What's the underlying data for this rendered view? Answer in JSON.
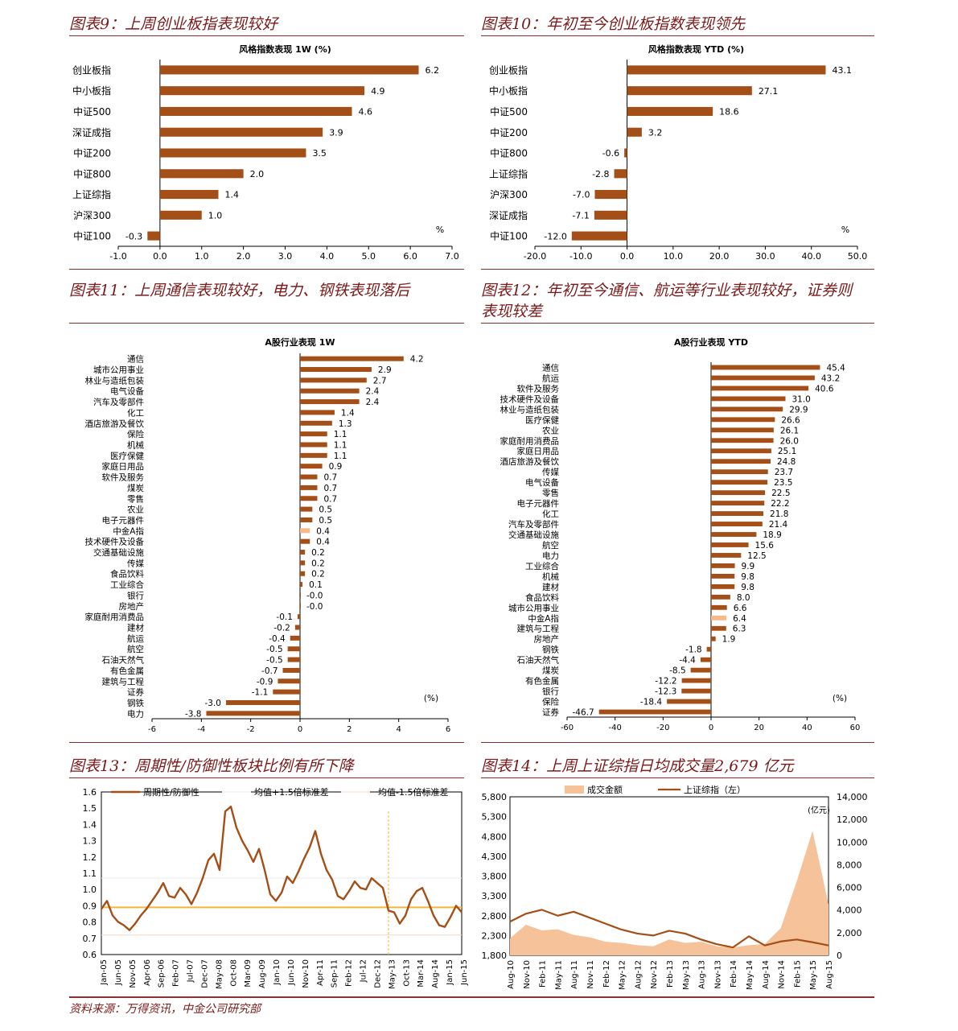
{
  "colors": {
    "bar": "#a34f17",
    "highlight": "#f5b98a",
    "title": "#7a1a1a",
    "line": "#a34f17",
    "band": "#f2b63b",
    "volume": "#f5c29a"
  },
  "panels": [
    {
      "title": "图表9：上周创业板指表现较好"
    },
    {
      "title": "图表10：年初至今创业板指数表现领先"
    },
    {
      "title": "图表11：上周通信表现较好，电力、钢铁表现落后"
    },
    {
      "title": "图表12：年初至今通信、航运等行业表现较好，证券则",
      "title2": "表现较差"
    },
    {
      "title": "图表13：周期性/防御性板块比例有所下降"
    },
    {
      "title": "图表14：上周上证综指日均成交量2,679 亿元"
    }
  ],
  "footer": "资料来源：万得资讯，中金公司研究部",
  "chart_data": [
    {
      "type": "bar",
      "title": "风格指数表现 1W (%)",
      "unit": "%",
      "categories": [
        "创业板指",
        "中小板指",
        "中证500",
        "深证成指",
        "中证200",
        "中证800",
        "上证综指",
        "沪深300",
        "中证100"
      ],
      "values": [
        6.2,
        4.9,
        4.6,
        3.9,
        3.5,
        2.0,
        1.4,
        1.0,
        -0.3
      ],
      "value_labels": [
        "6.2",
        "4.9",
        "4.6",
        "3.9",
        "3.5",
        "2.0",
        "1.4",
        "1.0",
        "-0.3"
      ],
      "xlim": [
        -1,
        7
      ],
      "xticks": [
        "-1.0",
        "0.0",
        "1.0",
        "2.0",
        "3.0",
        "4.0",
        "5.0",
        "6.0",
        "7.0"
      ]
    },
    {
      "type": "bar",
      "title": "风格指数表现 YTD (%)",
      "unit": "%",
      "categories": [
        "创业板指",
        "中小板指",
        "中证500",
        "中证200",
        "中证800",
        "上证综指",
        "沪深300",
        "深证成指",
        "中证100"
      ],
      "values": [
        43.1,
        27.1,
        18.6,
        3.2,
        -0.6,
        -2.8,
        -7.0,
        -7.1,
        -12.0
      ],
      "value_labels": [
        "43.1",
        "27.1",
        "18.6",
        "3.2",
        "-0.6",
        "-2.8",
        "-7.0",
        "-7.1",
        "-12.0"
      ],
      "xlim": [
        -20,
        50
      ],
      "xticks": [
        "-20.0",
        "-10.0",
        "0.0",
        "10.0",
        "20.0",
        "30.0",
        "40.0",
        "50.0"
      ]
    },
    {
      "type": "bar",
      "title": "A股行业表现 1W",
      "unit": "(%)",
      "highlight": "中金A指",
      "categories": [
        "通信",
        "城市公用事业",
        "林业与造纸包装",
        "电气设备",
        "汽车及零部件",
        "化工",
        "酒店旅游及餐饮",
        "保险",
        "机械",
        "医疗保健",
        "家庭日用品",
        "软件及服务",
        "煤炭",
        "零售",
        "农业",
        "电子元器件",
        "中金A指",
        "技术硬件及设备",
        "交通基础设施",
        "传媒",
        "食品饮料",
        "工业综合",
        "银行",
        "房地产",
        "家庭耐用消费品",
        "建材",
        "航运",
        "航空",
        "石油天然气",
        "有色金属",
        "建筑与工程",
        "证券",
        "钢铁",
        "电力"
      ],
      "values": [
        4.2,
        2.9,
        2.7,
        2.4,
        2.4,
        1.4,
        1.3,
        1.1,
        1.1,
        1.1,
        0.9,
        0.7,
        0.7,
        0.7,
        0.5,
        0.5,
        0.4,
        0.4,
        0.2,
        0.2,
        0.2,
        0.1,
        -0.0,
        -0.0,
        -0.1,
        -0.2,
        -0.4,
        -0.5,
        -0.5,
        -0.7,
        -0.9,
        -1.1,
        -3.0,
        -3.8
      ],
      "value_labels": [
        "4.2",
        "2.9",
        "2.7",
        "2.4",
        "2.4",
        "1.4",
        "1.3",
        "1.1",
        "1.1",
        "1.1",
        "0.9",
        "0.7",
        "0.7",
        "0.7",
        "0.5",
        "0.5",
        "0.4",
        "0.4",
        "0.2",
        "0.2",
        "0.2",
        "0.1",
        "-0.0",
        "-0.0",
        "-0.1",
        "-0.2",
        "-0.4",
        "-0.5",
        "-0.5",
        "-0.7",
        "-0.9",
        "-1.1",
        "-3.0",
        "-3.8"
      ],
      "xlim": [
        -6,
        6
      ],
      "xticks": [
        "-6",
        "-4",
        "-2",
        "0",
        "2",
        "4",
        "6"
      ]
    },
    {
      "type": "bar",
      "title": "A股行业表现 YTD",
      "unit": "(%)",
      "highlight": "中金A指",
      "categories": [
        "通信",
        "航运",
        "软件及服务",
        "技术硬件及设备",
        "林业与造纸包装",
        "医疗保健",
        "农业",
        "家庭耐用消费品",
        "家庭日用品",
        "酒店旅游及餐饮",
        "传媒",
        "电气设备",
        "零售",
        "电子元器件",
        "化工",
        "汽车及零部件",
        "交通基础设施",
        "航空",
        "电力",
        "工业综合",
        "机械",
        "建材",
        "食品饮料",
        "城市公用事业",
        "中金A指",
        "建筑与工程",
        "房地产",
        "钢铁",
        "石油天然气",
        "煤炭",
        "有色金属",
        "银行",
        "保险",
        "证券"
      ],
      "values": [
        45.4,
        43.2,
        40.6,
        31.0,
        29.9,
        26.6,
        26.1,
        26.0,
        25.1,
        24.8,
        23.7,
        23.5,
        22.5,
        22.2,
        21.8,
        21.4,
        18.9,
        15.6,
        12.5,
        9.9,
        9.8,
        9.8,
        8.0,
        6.6,
        6.4,
        6.3,
        1.9,
        -1.8,
        -4.4,
        -8.5,
        -12.2,
        -12.3,
        -18.4,
        -46.7
      ],
      "value_labels": [
        "45.4",
        "43.2",
        "40.6",
        "31.0",
        "29.9",
        "26.6",
        "26.1",
        "26.0",
        "25.1",
        "24.8",
        "23.7",
        "23.5",
        "22.5",
        "22.2",
        "21.8",
        "21.4",
        "18.9",
        "15.6",
        "12.5",
        "9.9",
        "9.8",
        "9.8",
        "8.0",
        "6.6",
        "6.4",
        "6.3",
        "1.9",
        "-1.8",
        "-4.4",
        "-8.5",
        "-12.2",
        "-12.3",
        "-18.4",
        "-46.7"
      ],
      "xlim": [
        -60,
        60
      ],
      "xticks": [
        "-60",
        "-40",
        "-20",
        "0",
        "20",
        "40",
        "60"
      ]
    },
    {
      "type": "line",
      "legend": [
        "周期性/防御性",
        "均值+1.5倍标准差",
        "均值-1.5倍标准差"
      ],
      "ylim": [
        0.6,
        1.6
      ],
      "yticks": [
        "1.6",
        "1.5",
        "1.4",
        "1.3",
        "1.2",
        "1.1",
        "1.0",
        "0.9",
        "0.8",
        "0.7",
        "0.6"
      ],
      "xticks": [
        "Jan-05",
        "Jun-05",
        "Nov-05",
        "Apr-06",
        "Sep-06",
        "Feb-07",
        "Jul-07",
        "Dec-07",
        "May-08",
        "Oct-08",
        "Mar-09",
        "Aug-09",
        "Jan-10",
        "Jun-10",
        "Nov-10",
        "Apr-11",
        "Sep-11",
        "Feb-12",
        "Jul-12",
        "Dec-12",
        "May-13",
        "Oct-13",
        "Mar-14",
        "Aug-14",
        "Jan-15",
        "Jun-15"
      ],
      "upper_band": 1.07,
      "lower_band": 0.72,
      "mean_line": 0.89,
      "x": [
        0,
        2,
        4,
        6,
        8,
        10,
        12,
        14,
        16,
        18,
        20,
        22,
        24,
        26,
        28,
        30,
        32,
        34,
        36,
        38,
        40,
        42,
        44,
        46,
        48,
        50,
        52,
        54,
        56,
        58,
        60,
        62,
        64,
        66,
        68,
        70,
        72,
        74,
        76,
        78,
        80,
        82,
        84,
        86,
        88,
        90,
        92,
        94,
        96,
        98,
        100,
        102,
        104,
        106,
        108,
        110,
        112,
        114,
        116,
        118,
        120,
        122,
        124,
        126,
        128
      ],
      "series": [
        {
          "values": [
            0.88,
            0.93,
            0.84,
            0.8,
            0.78,
            0.75,
            0.79,
            0.84,
            0.88,
            0.93,
            0.98,
            1.04,
            0.96,
            0.95,
            1.01,
            0.97,
            0.91,
            0.98,
            1.07,
            1.18,
            1.22,
            1.12,
            1.48,
            1.51,
            1.38,
            1.3,
            1.24,
            1.17,
            1.25,
            1.12,
            0.97,
            0.93,
            0.98,
            1.08,
            1.04,
            1.11,
            1.19,
            1.26,
            1.36,
            1.22,
            1.12,
            1.06,
            0.96,
            0.94,
            0.99,
            1.05,
            1.01,
            1.0,
            1.07,
            1.04,
            1.01,
            0.87,
            0.86,
            0.79,
            0.84,
            0.94,
            0.99,
            1.01,
            0.93,
            0.84,
            0.78,
            0.77,
            0.83,
            0.9,
            0.86
          ]
        }
      ]
    },
    {
      "type": "line",
      "legend": [
        "成交金额",
        "上证综指（左）"
      ],
      "unit_right": "(亿元)",
      "ylim": [
        1800,
        5800
      ],
      "yticks_left": [
        "5,800",
        "5,300",
        "4,800",
        "4,300",
        "3,800",
        "3,300",
        "2,800",
        "2,300",
        "1,800"
      ],
      "ylim_right": [
        0,
        14000
      ],
      "yticks_right": [
        "14,000",
        "12,000",
        "10,000",
        "8,000",
        "6,000",
        "4,000",
        "2,000",
        "0"
      ],
      "xticks": [
        "Aug-10",
        "Nov-10",
        "Feb-11",
        "May-11",
        "Aug-11",
        "Nov-11",
        "Feb-12",
        "May-12",
        "Aug-12",
        "Nov-12",
        "Feb-13",
        "May-13",
        "Aug-13",
        "Nov-13",
        "Feb-14",
        "May-14",
        "Aug-14",
        "Nov-14",
        "Feb-15",
        "May-15",
        "Aug-15"
      ],
      "x": [
        0,
        2,
        4,
        6,
        8,
        10,
        12,
        14,
        16,
        18,
        20,
        22,
        24,
        26,
        28,
        30,
        32,
        34,
        36,
        38,
        40
      ],
      "series": [
        {
          "name": "上证综指（左）",
          "values": [
            2650,
            2850,
            2950,
            2800,
            2900,
            2750,
            2600,
            2450,
            2350,
            2300,
            2420,
            2350,
            2200,
            2080,
            2000,
            2280,
            2050,
            2150,
            2200,
            2130,
            2050
          ]
        },
        {
          "name": "成交金额",
          "values": [
            1500,
            2700,
            2200,
            2300,
            1800,
            1600,
            1200,
            1100,
            900,
            800,
            1400,
            1100,
            1200,
            800,
            700,
            900,
            1000,
            2400,
            6500,
            11000,
            4500
          ]
        }
      ]
    }
  ]
}
